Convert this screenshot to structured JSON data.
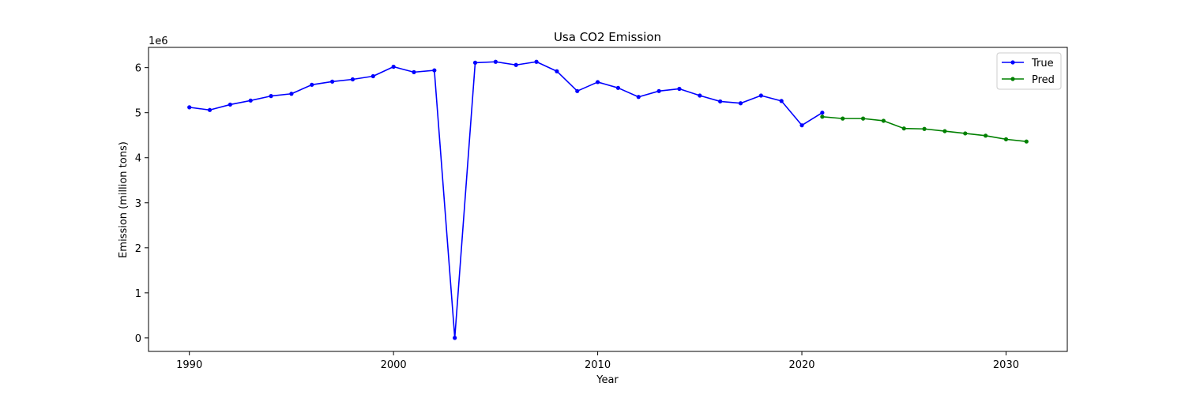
{
  "chart_data": {
    "type": "line",
    "title": "Usa CO2 Emission",
    "xlabel": "Year",
    "ylabel": "Emission (million tons)",
    "y_offset_label": "1e6",
    "xlim": [
      1988,
      2033
    ],
    "ylim": [
      -300000,
      6450000
    ],
    "x_ticks": [
      1990,
      2000,
      2010,
      2020,
      2030
    ],
    "x_tick_labels": [
      "1990",
      "2000",
      "2010",
      "2020",
      "2030"
    ],
    "y_ticks": [
      0,
      1000000,
      2000000,
      3000000,
      4000000,
      5000000,
      6000000
    ],
    "y_tick_labels": [
      "0",
      "1",
      "2",
      "3",
      "4",
      "5",
      "6"
    ],
    "grid": false,
    "legend_position": "top-right",
    "series": [
      {
        "name": "True",
        "color": "#0000ff",
        "marker": "dot",
        "x": [
          1990,
          1991,
          1992,
          1993,
          1994,
          1995,
          1996,
          1997,
          1998,
          1999,
          2000,
          2001,
          2002,
          2003,
          2004,
          2005,
          2006,
          2007,
          2008,
          2009,
          2010,
          2011,
          2012,
          2013,
          2014,
          2015,
          2016,
          2017,
          2018,
          2019,
          2020,
          2021
        ],
        "y": [
          5120000,
          5060000,
          5180000,
          5270000,
          5370000,
          5420000,
          5620000,
          5690000,
          5740000,
          5810000,
          6020000,
          5900000,
          5940000,
          0,
          6110000,
          6130000,
          6060000,
          6130000,
          5920000,
          5480000,
          5680000,
          5550000,
          5350000,
          5480000,
          5530000,
          5380000,
          5250000,
          5210000,
          5380000,
          5260000,
          4720000,
          5000000
        ]
      },
      {
        "name": "Pred",
        "color": "#008000",
        "marker": "dot",
        "x": [
          2021,
          2022,
          2023,
          2024,
          2025,
          2026,
          2027,
          2028,
          2029,
          2030,
          2031
        ],
        "y": [
          4910000,
          4870000,
          4870000,
          4820000,
          4650000,
          4640000,
          4590000,
          4540000,
          4490000,
          4410000,
          4360000
        ]
      }
    ]
  }
}
